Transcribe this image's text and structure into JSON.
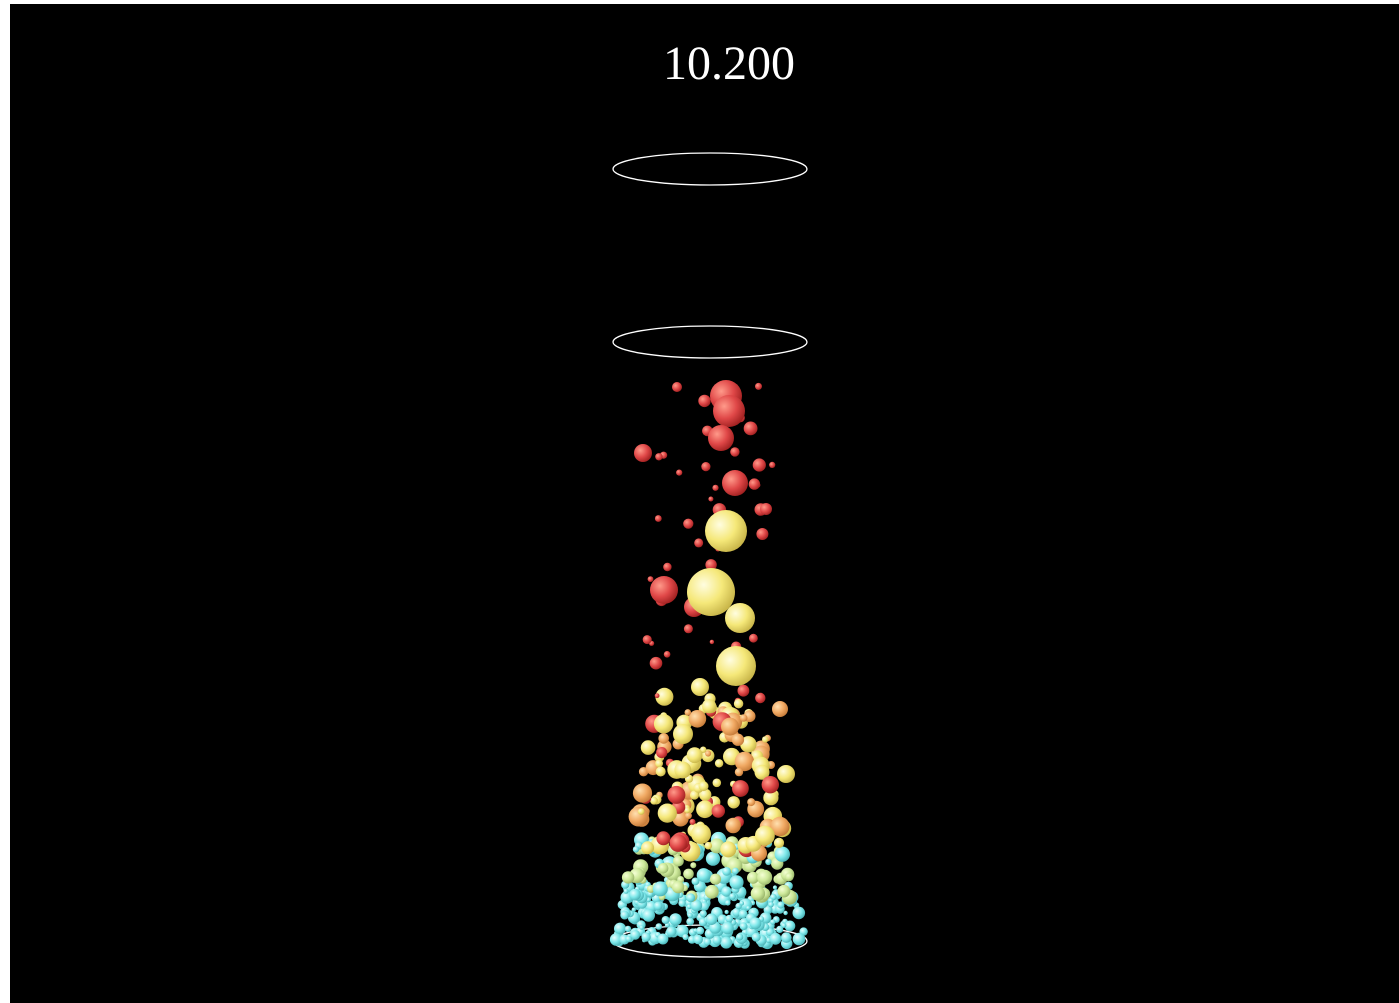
{
  "simulation": {
    "time_display": "10.200",
    "colors": {
      "background": "#000000",
      "ring_stroke": "#ffffff",
      "particle_large": "#f2e57a",
      "particle_mid": "#f0a060",
      "particle_small": "#e04848",
      "particle_bottom": "#7ee8e8"
    },
    "particles": {
      "render_style": "shaded-spheres",
      "count_visible": "many"
    }
  }
}
